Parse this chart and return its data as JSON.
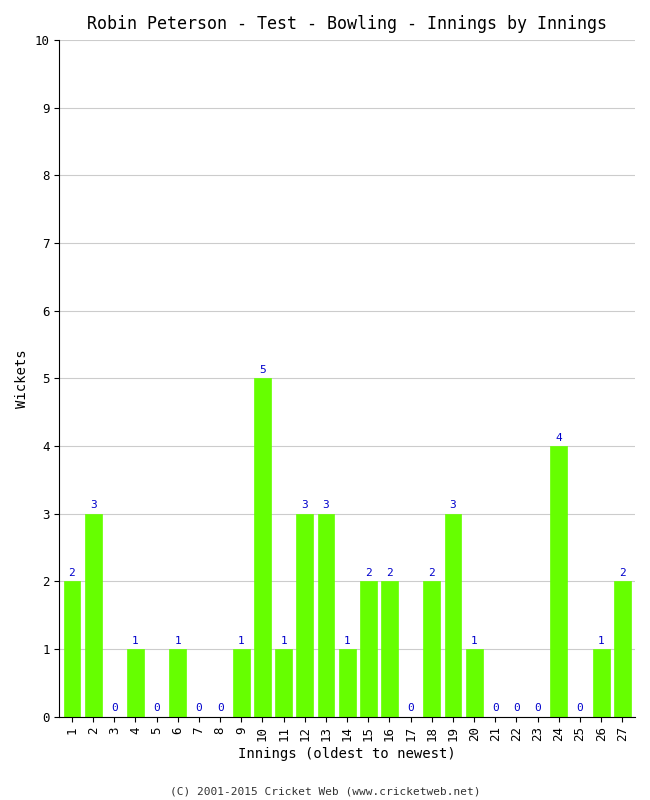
{
  "title": "Robin Peterson - Test - Bowling - Innings by Innings",
  "xlabel": "Innings (oldest to newest)",
  "ylabel": "Wickets",
  "footer": "(C) 2001-2015 Cricket Web (www.cricketweb.net)",
  "innings": [
    1,
    2,
    3,
    4,
    5,
    6,
    7,
    8,
    9,
    10,
    11,
    12,
    13,
    14,
    15,
    16,
    17,
    18,
    19,
    20,
    21,
    22,
    23,
    24,
    25,
    26,
    27
  ],
  "wickets": [
    2,
    3,
    0,
    1,
    0,
    1,
    0,
    0,
    1,
    5,
    1,
    3,
    3,
    1,
    2,
    2,
    0,
    2,
    3,
    1,
    0,
    0,
    0,
    4,
    0,
    1,
    2
  ],
  "bar_color": "#66ff00",
  "bar_edge_color": "#66ff00",
  "label_color": "#0000cc",
  "ylim": [
    0,
    10
  ],
  "yticks": [
    0,
    1,
    2,
    3,
    4,
    5,
    6,
    7,
    8,
    9,
    10
  ],
  "bg_color": "#ffffff",
  "grid_color": "#cccccc",
  "title_fontsize": 12,
  "axis_label_fontsize": 10,
  "tick_fontsize": 9,
  "bar_label_fontsize": 8,
  "footer_fontsize": 8
}
